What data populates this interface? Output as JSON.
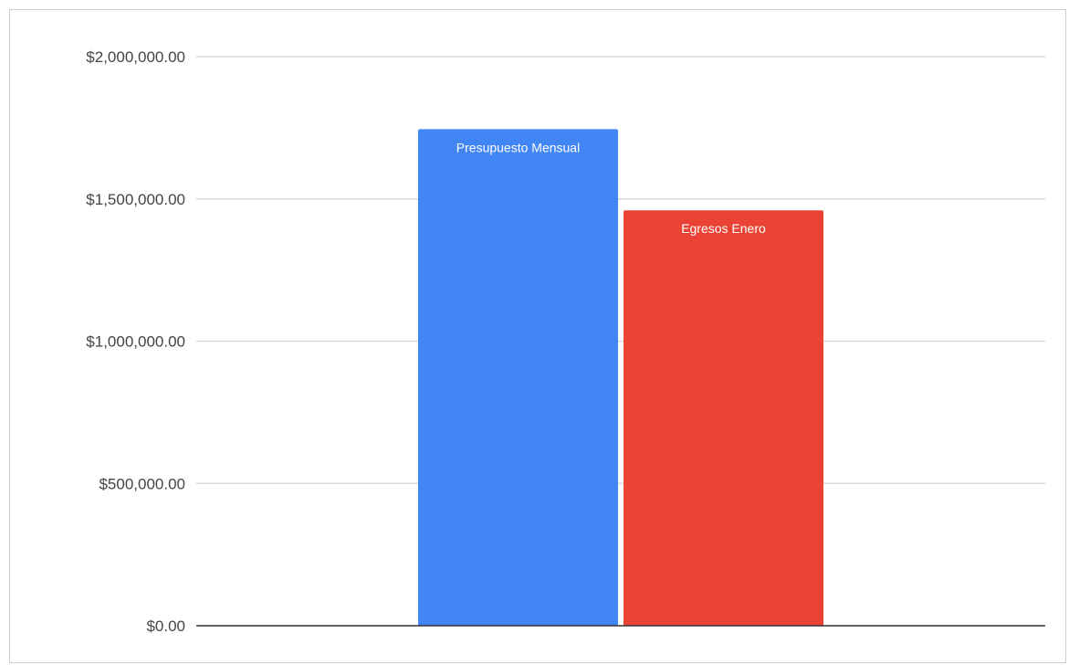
{
  "chart_data": {
    "type": "bar",
    "categories": [
      "Presupuesto Mensual",
      "Egresos Enero"
    ],
    "values": [
      1745000,
      1460000
    ],
    "colors": [
      "#4285f4",
      "#ea4335"
    ],
    "data_labels": [
      "Presupuesto Mensual",
      "Egresos Enero"
    ],
    "ylim": [
      0,
      2000000
    ],
    "yticks": [
      0,
      500000,
      1000000,
      1500000,
      2000000
    ],
    "ytick_labels": [
      "$0.00",
      "$500,000.00",
      "$1,000,000.00",
      "$1,500,000.00",
      "$2,000,000.00"
    ],
    "grid": true,
    "legend": "none",
    "title": "",
    "xlabel": "",
    "ylabel": ""
  }
}
